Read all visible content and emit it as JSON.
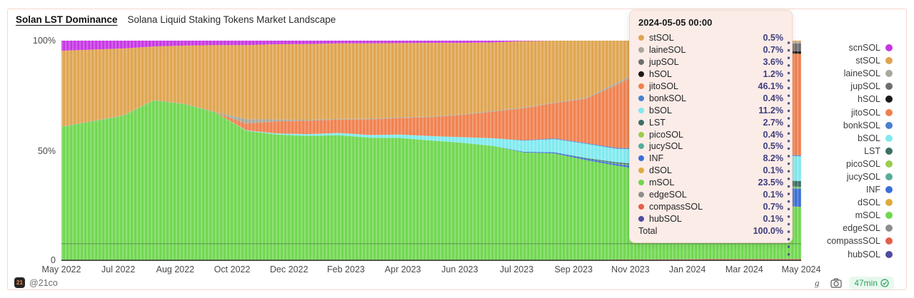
{
  "header": {
    "title": "Solan LST Dominance",
    "subtitle": "Solana Liquid Staking Tokens Market Landscape"
  },
  "y_axis": {
    "labels": [
      "100%",
      "50%",
      "0"
    ]
  },
  "x_axis": {
    "labels": [
      "May 2022",
      "Jul 2022",
      "Aug 2022",
      "Oct 2022",
      "Dec 2022",
      "Feb 2023",
      "Apr 2023",
      "Jun 2023",
      "Jul 2023",
      "Sep 2023",
      "Nov 2023",
      "Jan 2024",
      "Mar 2024",
      "May 2024"
    ]
  },
  "legend": {
    "items": [
      {
        "label": "scnSOL",
        "color": "#C636E3"
      },
      {
        "label": "stSOL",
        "color": "#DFA44F"
      },
      {
        "label": "laineSOL",
        "color": "#A8A89B"
      },
      {
        "label": "jupSOL",
        "color": "#6E6E6E"
      },
      {
        "label": "hSOL",
        "color": "#1A1A1A"
      },
      {
        "label": "jitoSOL",
        "color": "#F0804E"
      },
      {
        "label": "bonkSOL",
        "color": "#4A7FD0"
      },
      {
        "label": "bSOL",
        "color": "#7FE9EF"
      },
      {
        "label": "LST",
        "color": "#3C6F64"
      },
      {
        "label": "picoSOL",
        "color": "#9CCB4E"
      },
      {
        "label": "jucySOL",
        "color": "#57AD9A"
      },
      {
        "label": "INF",
        "color": "#3B6FD6"
      },
      {
        "label": "dSOL",
        "color": "#DDAB3D"
      },
      {
        "label": "mSOL",
        "color": "#70D74F"
      },
      {
        "label": "edgeSOL",
        "color": "#8E8E8E"
      },
      {
        "label": "compassSOL",
        "color": "#E45F49"
      },
      {
        "label": "hubSOL",
        "color": "#4E4C9E"
      }
    ]
  },
  "tooltip": {
    "title": "2024-05-05 00:00",
    "rows": [
      {
        "label": "stSOL",
        "color": "#DFA44F",
        "value": "0.5%"
      },
      {
        "label": "laineSOL",
        "color": "#A8A89B",
        "value": "0.7%"
      },
      {
        "label": "jupSOL",
        "color": "#6E6E6E",
        "value": "3.6%"
      },
      {
        "label": "hSOL",
        "color": "#1A1A1A",
        "value": "1.2%"
      },
      {
        "label": "jitoSOL",
        "color": "#F0804E",
        "value": "46.1%"
      },
      {
        "label": "bonkSOL",
        "color": "#4A7FD0",
        "value": "0.4%"
      },
      {
        "label": "bSOL",
        "color": "#7FE9EF",
        "value": "11.2%"
      },
      {
        "label": "LST",
        "color": "#3C6F64",
        "value": "2.7%"
      },
      {
        "label": "picoSOL",
        "color": "#9CCB4E",
        "value": "0.4%"
      },
      {
        "label": "jucySOL",
        "color": "#57AD9A",
        "value": "0.5%"
      },
      {
        "label": "INF",
        "color": "#3B6FD6",
        "value": "8.2%"
      },
      {
        "label": "dSOL",
        "color": "#DDAB3D",
        "value": "0.1%"
      },
      {
        "label": "mSOL",
        "color": "#70D74F",
        "value": "23.5%"
      },
      {
        "label": "edgeSOL",
        "color": "#8E8E8E",
        "value": "0.1%"
      },
      {
        "label": "compassSOL",
        "color": "#E45F49",
        "value": "0.7%"
      },
      {
        "label": "hubSOL",
        "color": "#4E4C9E",
        "value": "0.1%"
      }
    ],
    "total_label": "Total",
    "total_value": "100.0%"
  },
  "footer": {
    "logo_text": "21",
    "handle": "@21co",
    "freshness": "47min"
  },
  "chart_data": {
    "type": "area",
    "stacked": true,
    "normalized_percent": true,
    "title": "Solan LST Dominance",
    "ylim": [
      0,
      100
    ],
    "grid": "horizontal-line-at-7.8%",
    "legend_position": "right",
    "hover_x": "2024-05-05 00:00",
    "x": [
      "2022-05",
      "2022-06",
      "2022-07",
      "2022-08",
      "2022-09",
      "2022-10",
      "2022-11",
      "2022-12",
      "2023-01",
      "2023-02",
      "2023-03",
      "2023-04",
      "2023-05",
      "2023-06",
      "2023-07",
      "2023-08",
      "2023-09",
      "2023-10",
      "2023-11",
      "2023-12",
      "2024-01",
      "2024-02",
      "2024-03",
      "2024-04",
      "2024-05"
    ],
    "stack_order_bottom_to_top": [
      "hubSOL",
      "compassSOL",
      "edgeSOL",
      "mSOL",
      "dSOL",
      "INF",
      "jucySOL",
      "picoSOL",
      "LST",
      "bSOL",
      "bonkSOL",
      "jitoSOL",
      "hSOL",
      "jupSOL",
      "laineSOL",
      "stSOL",
      "scnSOL"
    ],
    "series": [
      {
        "name": "scnSOL",
        "color": "#C636E3",
        "values": [
          4.5,
          4.0,
          3.5,
          2.6,
          2.2,
          2.0,
          2.0,
          1.6,
          1.5,
          1.2,
          1.2,
          1.1,
          1.0,
          1.0,
          0.8,
          0.2,
          0,
          0,
          0,
          0,
          0,
          0,
          0,
          0,
          0
        ]
      },
      {
        "name": "stSOL",
        "color": "#DFA44F",
        "values": [
          34,
          32,
          30,
          24,
          26,
          30,
          33,
          34,
          34,
          34,
          34,
          33.5,
          33,
          32,
          31,
          30,
          28,
          26,
          19,
          12,
          8,
          5,
          2.5,
          1,
          0.5
        ]
      },
      {
        "name": "laineSOL",
        "color": "#A8A89B",
        "values": [
          0.2,
          0.2,
          0.2,
          0.2,
          0.2,
          0.3,
          2.0,
          0.8,
          0.4,
          0.3,
          0.3,
          0.3,
          0.3,
          0.3,
          0.3,
          0.3,
          0.3,
          0.4,
          0.9,
          0.6,
          0.5,
          0.5,
          0.6,
          0.7,
          0.7
        ]
      },
      {
        "name": "jupSOL",
        "color": "#6E6E6E",
        "values": [
          0,
          0,
          0,
          0,
          0,
          0,
          0,
          0,
          0,
          0,
          0,
          0,
          0,
          0,
          0,
          0,
          0,
          0,
          0,
          0,
          0,
          0.5,
          1.5,
          2.8,
          3.6
        ]
      },
      {
        "name": "hSOL",
        "color": "#1A1A1A",
        "values": [
          0,
          0,
          0,
          0,
          0,
          0,
          0,
          0,
          0,
          0,
          0,
          0,
          0,
          0,
          0,
          0,
          0,
          0,
          0,
          0,
          0.3,
          0.6,
          0.9,
          1.1,
          1.2
        ]
      },
      {
        "name": "jitoSOL",
        "color": "#F0804E",
        "values": [
          0,
          0,
          0,
          0,
          0,
          0,
          3,
          5.5,
          6,
          6,
          7,
          7.5,
          8.5,
          10,
          12,
          14.5,
          16,
          20,
          28,
          36,
          41,
          43,
          45,
          46,
          46.1
        ]
      },
      {
        "name": "bonkSOL",
        "color": "#4A7FD0",
        "values": [
          0,
          0,
          0,
          0,
          0,
          0,
          0,
          0,
          0,
          0,
          0,
          0,
          0,
          0,
          0,
          0.2,
          0.3,
          0.3,
          0.4,
          0.4,
          0.4,
          0.4,
          0.4,
          0.4,
          0.4
        ]
      },
      {
        "name": "bSOL",
        "color": "#7FE9EF",
        "values": [
          0,
          0,
          0,
          0,
          0,
          0,
          0.2,
          0.5,
          0.8,
          1.0,
          1.2,
          1.5,
          2.0,
          2.5,
          3.5,
          5,
          6,
          6.5,
          6,
          7,
          8.5,
          10,
          11,
          11.5,
          11.2
        ]
      },
      {
        "name": "LST",
        "color": "#3C6F64",
        "values": [
          0,
          0,
          0,
          0,
          0,
          0,
          0,
          0,
          0,
          0,
          0,
          0,
          0,
          0,
          0,
          0,
          0,
          0.3,
          0.5,
          0.8,
          1.2,
          1.8,
          2.2,
          2.6,
          2.7
        ]
      },
      {
        "name": "picoSOL",
        "color": "#9CCB4E",
        "values": [
          0,
          0,
          0,
          0,
          0,
          0,
          0,
          0,
          0,
          0,
          0,
          0,
          0,
          0,
          0,
          0,
          0,
          0,
          0.2,
          0.3,
          0.3,
          0.4,
          0.4,
          0.4,
          0.4
        ]
      },
      {
        "name": "jucySOL",
        "color": "#57AD9A",
        "values": [
          0,
          0,
          0,
          0,
          0,
          0,
          0,
          0,
          0,
          0,
          0,
          0,
          0,
          0,
          0,
          0,
          0,
          0,
          0,
          0.2,
          0.3,
          0.4,
          0.5,
          0.5,
          0.5
        ]
      },
      {
        "name": "INF",
        "color": "#3B6FD6",
        "values": [
          0,
          0,
          0,
          0,
          0,
          0,
          0,
          0,
          0,
          0,
          0,
          0,
          0,
          0,
          0,
          0.3,
          0.5,
          0.6,
          0.8,
          1.2,
          2.5,
          4.5,
          6.5,
          7.8,
          8.2
        ]
      },
      {
        "name": "dSOL",
        "color": "#DDAB3D",
        "values": [
          0,
          0,
          0,
          0,
          0,
          0,
          0,
          0,
          0,
          0,
          0,
          0,
          0,
          0,
          0,
          0,
          0,
          0,
          0,
          0,
          0.1,
          0.1,
          0.1,
          0.1,
          0.1
        ]
      },
      {
        "name": "mSOL",
        "color": "#70D74F",
        "values": [
          60,
          62.5,
          65,
          72,
          70,
          66.5,
          58,
          57,
          56,
          56.5,
          55.5,
          55.5,
          54,
          53,
          52,
          49,
          48.5,
          45.5,
          42,
          40,
          36,
          31.5,
          27.5,
          24.5,
          23.5
        ]
      },
      {
        "name": "edgeSOL",
        "color": "#8E8E8E",
        "values": [
          0,
          0,
          0,
          0,
          0,
          0,
          0,
          0,
          0,
          0,
          0,
          0,
          0,
          0,
          0,
          0,
          0,
          0,
          0,
          0,
          0.1,
          0.1,
          0.1,
          0.1,
          0.1
        ]
      },
      {
        "name": "compassSOL",
        "color": "#E45F49",
        "values": [
          0,
          0,
          0,
          0,
          0,
          0,
          0,
          0,
          0,
          0,
          0,
          0,
          0,
          0,
          0,
          0,
          0.1,
          0.2,
          0.4,
          0.5,
          0.6,
          0.7,
          0.7,
          0.7,
          0.7
        ]
      },
      {
        "name": "hubSOL",
        "color": "#4E4C9E",
        "values": [
          0,
          0,
          0,
          0,
          0,
          0,
          0,
          0,
          0,
          0,
          0,
          0,
          0,
          0,
          0,
          0,
          0.1,
          0.1,
          0.2,
          0.2,
          0.1,
          0.1,
          0.1,
          0.1,
          0.1
        ]
      }
    ]
  }
}
